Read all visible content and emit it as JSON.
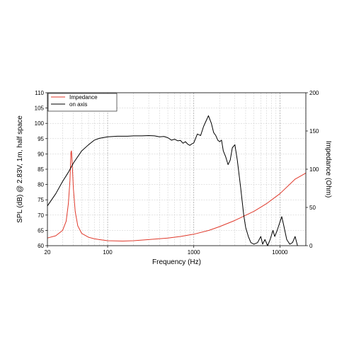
{
  "chart_data": {
    "type": "line",
    "title": "",
    "xlabel": "Frequency (Hz)",
    "ylabel_left": "SPL (dB) @ 2.83V, 1m, half space",
    "ylabel_right": "Impedance (Ohm)",
    "x_scale": "log",
    "xlim": [
      20,
      20000
    ],
    "ylim_left": [
      60,
      110
    ],
    "ylim_right": [
      0,
      200
    ],
    "x_tick_labels": [
      "20",
      "100",
      "1000",
      "10000"
    ],
    "x_ticks": [
      20,
      100,
      1000,
      10000
    ],
    "y_left_ticks": [
      60,
      65,
      70,
      75,
      80,
      85,
      90,
      95,
      100,
      105,
      110
    ],
    "y_left_tick_labels": [
      "60",
      "65",
      "70",
      "75",
      "80",
      "85",
      "90",
      "95",
      "100",
      "105",
      "110"
    ],
    "y_right_ticks": [
      0,
      50,
      100,
      150,
      200
    ],
    "y_right_tick_labels": [
      "0",
      "50",
      "100",
      "150",
      "200"
    ],
    "grid": true,
    "legend_position": "top-left",
    "series": [
      {
        "name": "Impedance",
        "axis": "right",
        "color": "#e0392b",
        "points": [
          [
            20,
            10
          ],
          [
            25,
            13
          ],
          [
            30,
            20
          ],
          [
            33,
            32
          ],
          [
            35,
            55
          ],
          [
            36.5,
            85
          ],
          [
            37.5,
            122
          ],
          [
            38,
            124
          ],
          [
            38.7,
            110
          ],
          [
            40,
            75
          ],
          [
            42,
            45
          ],
          [
            45,
            26
          ],
          [
            50,
            16
          ],
          [
            60,
            11
          ],
          [
            70,
            9
          ],
          [
            80,
            8
          ],
          [
            100,
            6.5
          ],
          [
            150,
            6
          ],
          [
            200,
            6.5
          ],
          [
            300,
            8
          ],
          [
            500,
            10
          ],
          [
            700,
            12
          ],
          [
            1000,
            15
          ],
          [
            1500,
            20
          ],
          [
            2000,
            25
          ],
          [
            3000,
            33
          ],
          [
            5000,
            45
          ],
          [
            7000,
            55
          ],
          [
            10000,
            68
          ],
          [
            15000,
            87
          ],
          [
            20000,
            95
          ]
        ]
      },
      {
        "name": "on axis",
        "axis": "left",
        "color": "#000000",
        "points": [
          [
            20,
            73
          ],
          [
            25,
            77
          ],
          [
            30,
            81
          ],
          [
            35,
            84
          ],
          [
            40,
            87
          ],
          [
            50,
            91
          ],
          [
            60,
            93
          ],
          [
            70,
            94.5
          ],
          [
            80,
            95.1
          ],
          [
            100,
            95.6
          ],
          [
            130,
            95.8
          ],
          [
            170,
            95.8
          ],
          [
            200,
            95.9
          ],
          [
            250,
            95.9
          ],
          [
            300,
            96
          ],
          [
            350,
            95.9
          ],
          [
            400,
            95.6
          ],
          [
            450,
            95.7
          ],
          [
            500,
            95.3
          ],
          [
            550,
            94.5
          ],
          [
            600,
            94.8
          ],
          [
            650,
            94.3
          ],
          [
            700,
            94.4
          ],
          [
            750,
            93.5
          ],
          [
            800,
            94.0
          ],
          [
            850,
            93.2
          ],
          [
            900,
            92.8
          ],
          [
            950,
            93.3
          ],
          [
            1000,
            93.6
          ],
          [
            1100,
            96.5
          ],
          [
            1200,
            96
          ],
          [
            1300,
            99
          ],
          [
            1400,
            101
          ],
          [
            1480,
            102.5
          ],
          [
            1600,
            100
          ],
          [
            1700,
            97
          ],
          [
            1800,
            96
          ],
          [
            1900,
            94.5
          ],
          [
            2000,
            94
          ],
          [
            2100,
            94.5
          ],
          [
            2200,
            91
          ],
          [
            2350,
            89
          ],
          [
            2500,
            86.5
          ],
          [
            2650,
            88
          ],
          [
            2800,
            92
          ],
          [
            3000,
            93
          ],
          [
            3200,
            88
          ],
          [
            3500,
            79
          ],
          [
            3800,
            70
          ],
          [
            4000,
            66
          ],
          [
            4300,
            63
          ],
          [
            4600,
            61
          ],
          [
            5000,
            60.5
          ],
          [
            5500,
            61
          ],
          [
            6000,
            63
          ],
          [
            6300,
            60.5
          ],
          [
            6700,
            62
          ],
          [
            7200,
            60
          ],
          [
            7700,
            62
          ],
          [
            8300,
            65
          ],
          [
            8700,
            63
          ],
          [
            9300,
            65
          ],
          [
            9800,
            67
          ],
          [
            10500,
            69.5
          ],
          [
            11000,
            67
          ],
          [
            12000,
            62
          ],
          [
            13000,
            60.5
          ],
          [
            14000,
            61
          ],
          [
            15000,
            63
          ],
          [
            16000,
            60
          ]
        ]
      }
    ]
  }
}
